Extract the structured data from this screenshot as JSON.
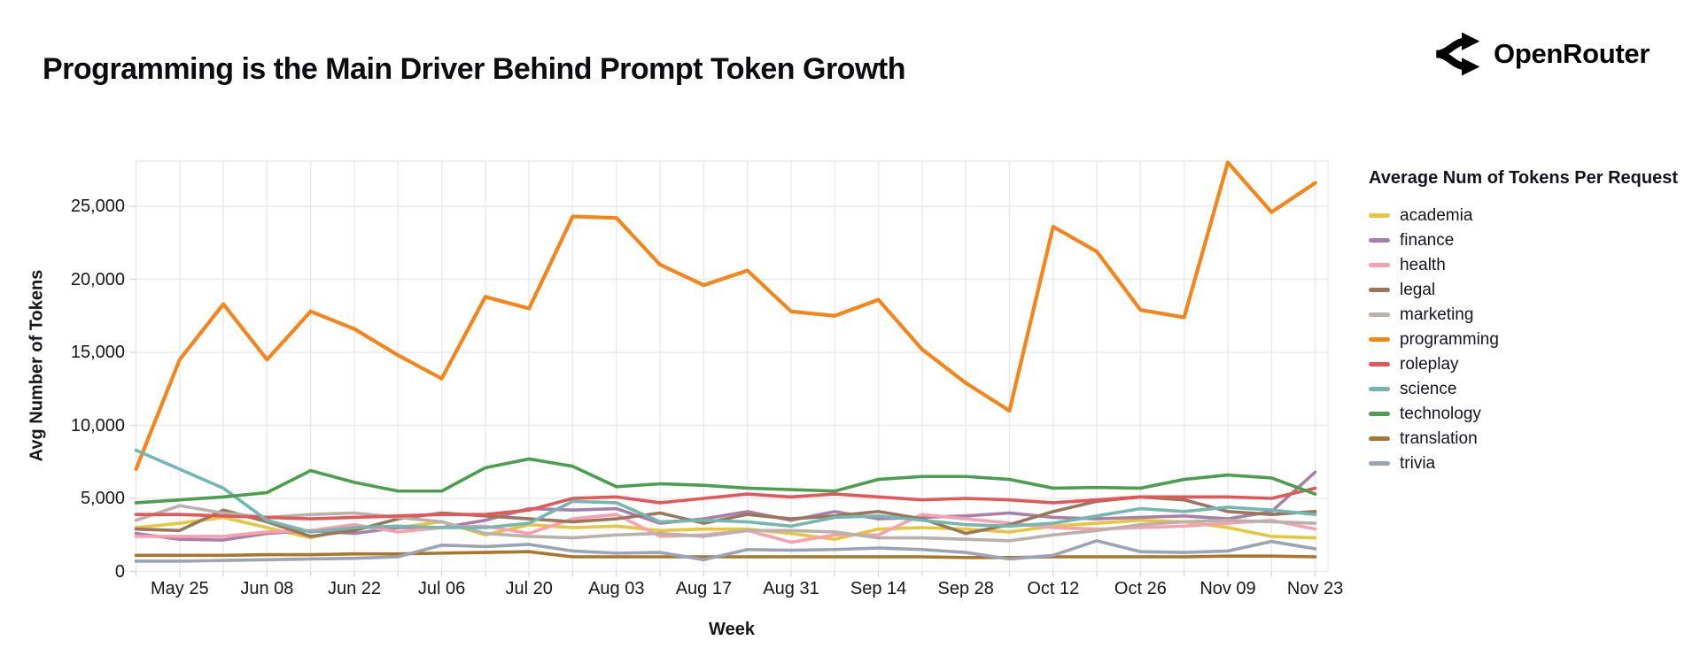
{
  "header": {
    "title": "Programming is the Main Driver Behind Prompt Token Growth",
    "brand": "OpenRouter"
  },
  "chart_data": {
    "type": "line",
    "title": "Programming is the Main Driver Behind Prompt Token Growth",
    "xlabel": "Week",
    "ylabel": "Avg Number of Tokens",
    "legend_title": "Average Num of Tokens Per Request",
    "legend_position": "right",
    "grid": true,
    "ylim": [
      0,
      28000
    ],
    "yticks": [
      0,
      5000,
      10000,
      15000,
      20000,
      25000
    ],
    "x": [
      "May 18",
      "May 25",
      "Jun 01",
      "Jun 08",
      "Jun 15",
      "Jun 22",
      "Jun 29",
      "Jul 06",
      "Jul 13",
      "Jul 20",
      "Jul 27",
      "Aug 03",
      "Aug 10",
      "Aug 17",
      "Aug 24",
      "Aug 31",
      "Sep 07",
      "Sep 14",
      "Sep 21",
      "Sep 28",
      "Oct 05",
      "Oct 12",
      "Oct 19",
      "Oct 26",
      "Nov 02",
      "Nov 09",
      "Nov 16",
      "Nov 23"
    ],
    "x_tick_labels": [
      "May 25",
      "Jun 08",
      "Jun 22",
      "Jul 06",
      "Jul 20",
      "Aug 03",
      "Aug 17",
      "Aug 31",
      "Sep 14",
      "Sep 28",
      "Oct 12",
      "Oct 26",
      "Nov 09",
      "Nov 23"
    ],
    "series": [
      {
        "name": "academia",
        "color": "#e7c63e",
        "values": [
          3000,
          3300,
          3700,
          3000,
          2300,
          3000,
          3000,
          3400,
          2500,
          3200,
          3000,
          3100,
          2800,
          2900,
          2900,
          2600,
          2200,
          2900,
          3000,
          2900,
          2700,
          3100,
          3300,
          3500,
          3400,
          3000,
          2400,
          2300
        ]
      },
      {
        "name": "finance",
        "color": "#a97fa9",
        "values": [
          2600,
          2200,
          2150,
          2600,
          2800,
          2600,
          3000,
          3000,
          3500,
          4300,
          4200,
          4300,
          3300,
          3600,
          4100,
          3500,
          4100,
          3600,
          3700,
          3800,
          4000,
          3700,
          3600,
          3700,
          3800,
          3600,
          4100,
          6800
        ]
      },
      {
        "name": "health",
        "color": "#f8a0ae",
        "values": [
          2400,
          2400,
          2400,
          2700,
          2800,
          3200,
          2700,
          3000,
          3100,
          2600,
          3600,
          3900,
          2400,
          2500,
          2800,
          2000,
          2500,
          2500,
          3900,
          3600,
          3300,
          3000,
          2900,
          3000,
          3100,
          3300,
          3500,
          2900
        ]
      },
      {
        "name": "legal",
        "color": "#9d755d",
        "values": [
          2900,
          2800,
          4200,
          3400,
          2400,
          2800,
          3600,
          4000,
          3800,
          3600,
          3400,
          3600,
          4000,
          3300,
          3900,
          3600,
          3800,
          4100,
          3600,
          2600,
          3200,
          4100,
          4800,
          5100,
          4900,
          4100,
          3900,
          4100
        ]
      },
      {
        "name": "marketing",
        "color": "#bab0ac",
        "values": [
          3500,
          4500,
          4000,
          3700,
          3900,
          4000,
          3700,
          3400,
          2600,
          2400,
          2300,
          2500,
          2600,
          2400,
          2800,
          2800,
          2700,
          2300,
          2300,
          2200,
          2100,
          2500,
          2800,
          3200,
          3400,
          3500,
          3400,
          3300
        ]
      },
      {
        "name": "programming",
        "color": "#f58518",
        "values": [
          7000,
          14500,
          18300,
          14500,
          17800,
          16600,
          14800,
          13200,
          18800,
          18000,
          24300,
          24200,
          21000,
          19600,
          20600,
          17800,
          17500,
          18600,
          15200,
          12900,
          11000,
          23600,
          21900,
          17900,
          17400,
          28000,
          24600,
          26600
        ]
      },
      {
        "name": "roleplay",
        "color": "#e45756",
        "values": [
          3900,
          3900,
          3800,
          3700,
          3600,
          3700,
          3800,
          3900,
          3900,
          4200,
          5000,
          5100,
          4700,
          5000,
          5300,
          5100,
          5300,
          5100,
          4900,
          5000,
          4900,
          4700,
          4900,
          5100,
          5100,
          5100,
          5000,
          5700
        ]
      },
      {
        "name": "science",
        "color": "#72b7b2",
        "values": [
          8300,
          7000,
          5700,
          3500,
          2700,
          3000,
          3100,
          3000,
          3000,
          3300,
          4800,
          4700,
          3400,
          3500,
          3400,
          3100,
          3700,
          3800,
          3500,
          3200,
          3100,
          3300,
          3800,
          4300,
          4100,
          4400,
          4200,
          3900
        ]
      },
      {
        "name": "technology",
        "color": "#4a9e4d",
        "values": [
          4700,
          4900,
          5100,
          5400,
          6900,
          6100,
          5500,
          5500,
          7100,
          7700,
          7200,
          5800,
          6000,
          5900,
          5700,
          5600,
          5500,
          6300,
          6500,
          6500,
          6300,
          5700,
          5750,
          5700,
          6300,
          6600,
          6400,
          5300
        ]
      },
      {
        "name": "translation",
        "color": "#a9762c",
        "values": [
          1100,
          1100,
          1100,
          1150,
          1150,
          1200,
          1200,
          1250,
          1300,
          1350,
          1000,
          1000,
          1000,
          1000,
          1000,
          1000,
          1000,
          1000,
          1000,
          950,
          950,
          1000,
          1000,
          1000,
          1000,
          1050,
          1050,
          1000
        ]
      },
      {
        "name": "trivia",
        "color": "#9ba3b7",
        "values": [
          700,
          700,
          750,
          800,
          850,
          900,
          1000,
          1800,
          1700,
          1850,
          1400,
          1250,
          1300,
          800,
          1500,
          1450,
          1500,
          1600,
          1500,
          1300,
          850,
          1100,
          2100,
          1350,
          1300,
          1400,
          2050,
          1550
        ]
      }
    ]
  }
}
